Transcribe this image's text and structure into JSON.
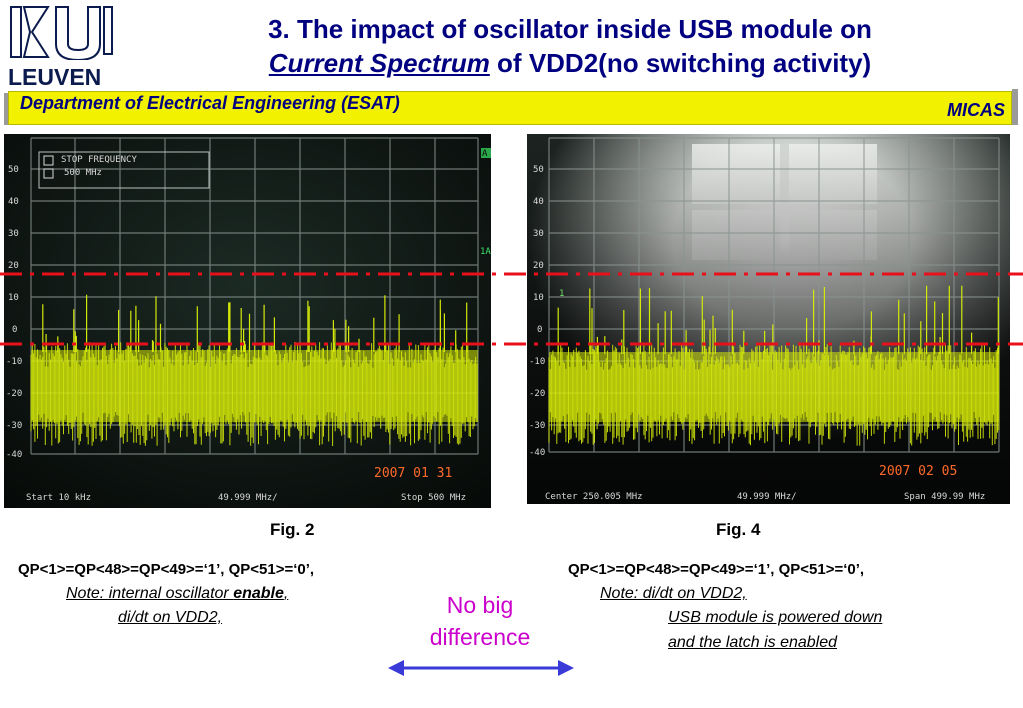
{
  "logo": {
    "text": "LEUVEN"
  },
  "title": {
    "line1": "3. The impact of oscillator inside USB module on",
    "line2_emph": "Current Spectrum",
    "line2_rest": " of VDD2(no switching activity)"
  },
  "banner": {
    "left": "Department of Electrical Engineering (ESAT)",
    "right": "MICAS"
  },
  "left_plot": {
    "y_ticks": [
      "50",
      "40",
      "30",
      "20",
      "10",
      "0",
      "-10",
      "-20",
      "-30",
      "-40"
    ],
    "info_label": "STOP FREQUENCY",
    "info_value": "500 MHz",
    "right_marker_top": "A",
    "right_marker_mid": "1A",
    "date": "2007 01 31",
    "footer_left": "Start 10 kHz",
    "footer_mid": "49.999 MHz/",
    "footer_right": "Stop 500 MHz"
  },
  "right_plot": {
    "y_ticks": [
      "50",
      "40",
      "30",
      "20",
      "10",
      "0",
      "-10",
      "-20",
      "-30",
      "-40"
    ],
    "marker": "1",
    "date": "2007 02 05",
    "footer_left": "Center 250.005 MHz",
    "footer_mid": "49.999 MHz/",
    "footer_right": "Span 499.99 MHz"
  },
  "captions": {
    "fig_left": "Fig. 2",
    "fig_right": "Fig. 4",
    "qp_left": "QP<1>=QP<48>=QP<49>=‘1’, QP<51>=‘0’,",
    "qp_right": "QP<1>=QP<48>=QP<49>=‘1’, QP<51>=‘0’,",
    "note_left_prefix": "Note:  internal oscillator ",
    "note_left_bold": "enable",
    "note_left_suffix": ",",
    "note_left_line2": "di/dt on VDD2,",
    "note_right_line1": "Note:    di/dt on VDD2,",
    "note_right_line2": "USB module is powered down",
    "note_right_line3": "and the latch is enabled"
  },
  "comparison": {
    "line1": "No big",
    "line2": "difference"
  },
  "colors": {
    "title": "#000080",
    "banner": "#f2f200",
    "trace": "#d4e80a",
    "reference_line": "#e8101a",
    "accent_text": "#cc00cc",
    "arrow": "#3a3ad8"
  }
}
